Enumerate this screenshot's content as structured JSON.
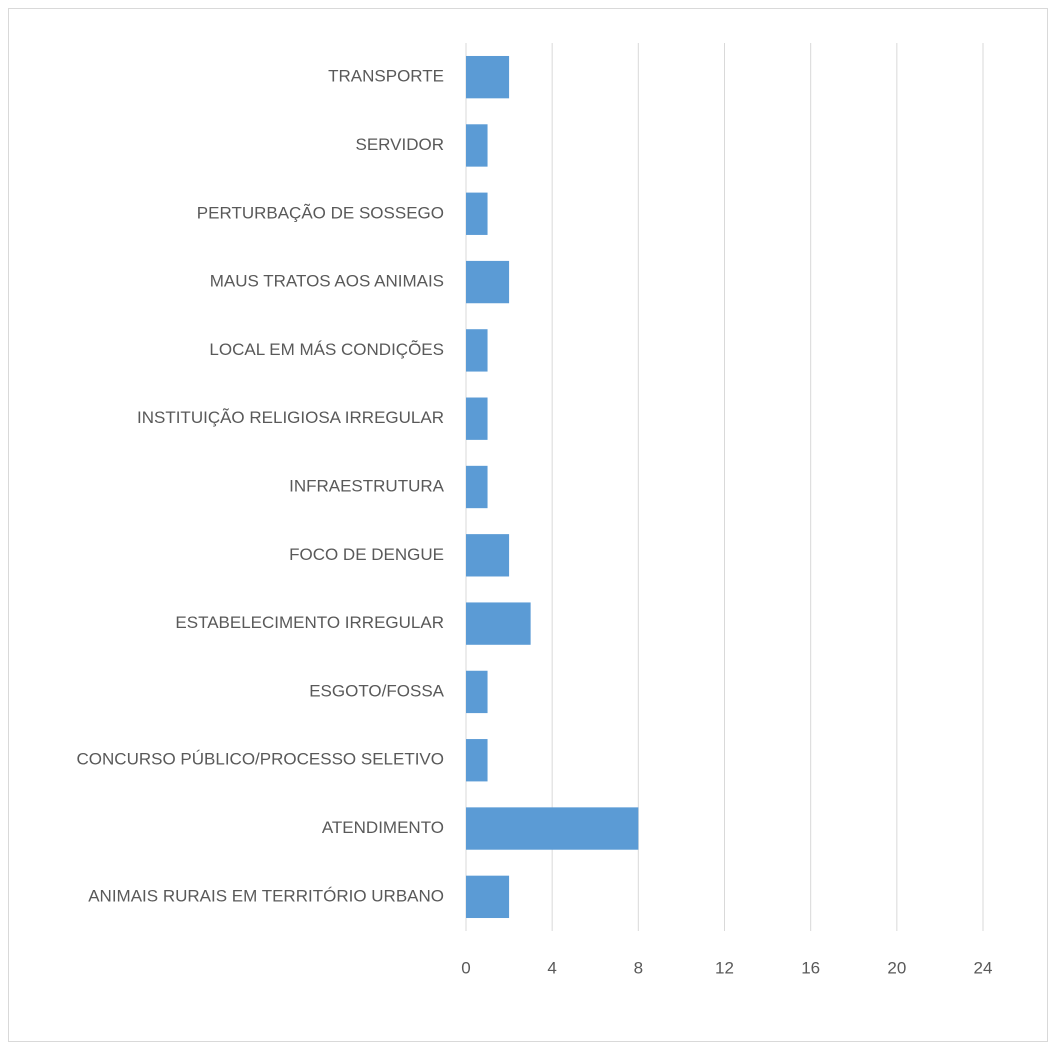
{
  "chart_data": {
    "type": "bar",
    "orientation": "horizontal",
    "categories": [
      "ANIMAIS RURAIS EM TERRITÓRIO URBANO",
      "ATENDIMENTO",
      "CONCURSO PÚBLICO/PROCESSO SELETIVO",
      "ESGOTO/FOSSA",
      "ESTABELECIMENTO IRREGULAR",
      "FOCO DE DENGUE",
      "INFRAESTRUTURA",
      "INSTITUIÇÃO RELIGIOSA IRREGULAR",
      "LOCAL EM MÁS CONDIÇÕES",
      "MAUS TRATOS AOS ANIMAIS",
      "PERTURBAÇÃO DE SOSSEGO",
      "SERVIDOR",
      "TRANSPORTE"
    ],
    "values": [
      2,
      8,
      1,
      1,
      3,
      2,
      1,
      1,
      1,
      2,
      1,
      1,
      2
    ],
    "color": "#5b9bd5",
    "xlim": [
      0,
      24
    ],
    "xticks": [
      0,
      4,
      8,
      12,
      16,
      20,
      24
    ],
    "grid": true
  }
}
